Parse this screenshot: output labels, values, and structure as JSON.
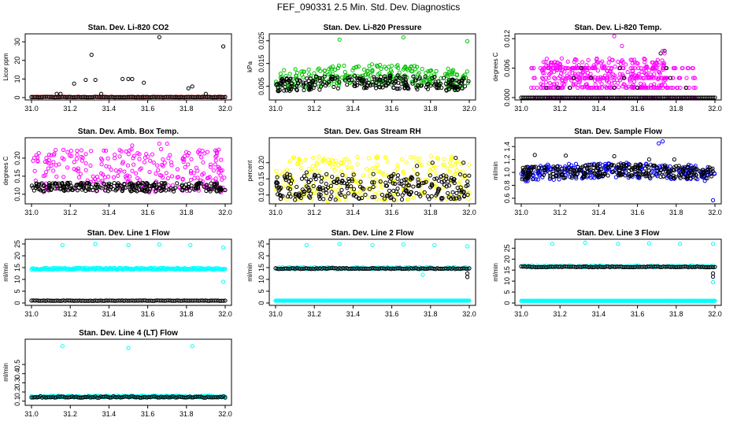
{
  "figure_title": "FEF_090331  2.5 Min. Std. Dev. Diagnostics",
  "chart_data": [
    {
      "type": "scatter",
      "title": "Stan. Dev. Li-820 CO2",
      "xlabel": "",
      "ylabel": "Licor ppm",
      "xlim": [
        31.0,
        32.0
      ],
      "ylim": [
        0,
        33
      ],
      "xticks": [
        "31.0",
        "31.2",
        "31.4",
        "31.6",
        "31.8",
        "32.0"
      ],
      "yticks": [
        "0",
        "10",
        "20",
        "30"
      ],
      "series": [
        {
          "name": "bulk",
          "color": "#ff0000",
          "mode": "base",
          "base": 0.3,
          "spread": 0.4
        },
        {
          "name": "black",
          "color": "#000000",
          "mode": "base",
          "base": 0.3,
          "spread": 0.3
        },
        {
          "name": "black-outliers",
          "color": "#000000",
          "mode": "points",
          "x": [
            31.13,
            31.15,
            31.22,
            31.28,
            31.31,
            31.33,
            31.36,
            31.47,
            31.5,
            31.52,
            31.58,
            31.66,
            31.81,
            31.83,
            31.9,
            31.99
          ],
          "y": [
            2,
            2,
            7.5,
            9.5,
            23,
            9.5,
            2,
            10,
            10,
            10,
            8,
            32.5,
            5,
            6,
            2,
            27.5
          ]
        }
      ]
    },
    {
      "type": "scatter",
      "title": "Stan. Dev. Li-820 Pressure",
      "xlabel": "",
      "ylabel": "kPa",
      "xlim": [
        31.0,
        32.0
      ],
      "ylim": [
        0,
        0.027
      ],
      "xticks": [
        "31.0",
        "31.2",
        "31.4",
        "31.6",
        "31.8",
        "32.0"
      ],
      "yticks": [
        "0.005",
        "0.015",
        "0.025"
      ],
      "series": [
        {
          "name": "green",
          "color": "#00c000",
          "mode": "band",
          "base": 0.0072,
          "spread": 0.0045,
          "trend": 0.003
        },
        {
          "name": "black",
          "color": "#000000",
          "mode": "band",
          "base": 0.0055,
          "spread": 0.003,
          "trend": 0.0015
        },
        {
          "name": "green-outliers",
          "color": "#00c000",
          "mode": "points",
          "x": [
            31.33,
            31.66,
            31.99
          ],
          "y": [
            0.0255,
            0.0265,
            0.0248
          ]
        }
      ]
    },
    {
      "type": "scatter",
      "title": "Stan. Dev. Li-820 Temp.",
      "xlabel": "",
      "ylabel": "degrees C",
      "xlim": [
        31.0,
        32.0
      ],
      "ylim": [
        0,
        0.0125
      ],
      "xticks": [
        "31.0",
        "31.2",
        "31.4",
        "31.6",
        "31.8",
        "32.0"
      ],
      "yticks": [
        "0.000",
        "0.006",
        "0.012"
      ],
      "series": [
        {
          "name": "magenta-levels",
          "color": "#ff00ff",
          "mode": "levels",
          "levels": [
            0,
            0.002,
            0.004,
            0.006
          ],
          "xrange": [
            31.05,
            31.9
          ]
        },
        {
          "name": "magenta-bumps",
          "color": "#ff00ff",
          "mode": "band",
          "base": 0.005,
          "spread": 0.003,
          "trend": 0.0,
          "xrange": [
            31.1,
            31.75
          ]
        },
        {
          "name": "black-zero",
          "color": "#000000",
          "mode": "base",
          "base": 0.0,
          "spread": 0.0
        },
        {
          "name": "black-high",
          "color": "#000000",
          "mode": "points",
          "x": [
            31.13,
            31.19,
            31.25,
            31.27,
            31.31,
            31.36,
            31.48,
            31.51,
            31.53,
            31.6,
            31.72,
            31.74,
            31.75,
            31.77,
            31.85
          ],
          "y": [
            0.002,
            0.002,
            0.002,
            0.004,
            0.006,
            0.004,
            0.002,
            0.006,
            0.004,
            0.002,
            0.009,
            0.0095,
            0.006,
            0.004,
            0.002
          ]
        },
        {
          "name": "magenta-outliers",
          "color": "#ff00ff",
          "mode": "points",
          "x": [
            31.48,
            31.52,
            31.73,
            31.74
          ],
          "y": [
            0.0125,
            0.0105,
            0.0095,
            0.009
          ]
        }
      ]
    },
    {
      "type": "scatter",
      "title": "Stan. Dev. Amb. Box Temp.",
      "xlabel": "",
      "ylabel": "degrees C",
      "xlim": [
        31.0,
        32.0
      ],
      "ylim": [
        0.08,
        0.25
      ],
      "xticks": [
        "31.0",
        "31.2",
        "31.4",
        "31.6",
        "31.8",
        "32.0"
      ],
      "yticks": [
        "0.10",
        "0.15",
        "0.20"
      ],
      "series": [
        {
          "name": "magenta",
          "color": "#ff00ff",
          "mode": "band",
          "base": 0.165,
          "spread": 0.06,
          "trend": 0.0
        },
        {
          "name": "black",
          "color": "#000000",
          "mode": "band",
          "base": 0.12,
          "spread": 0.012,
          "trend": 0.0
        },
        {
          "name": "magenta-outliers",
          "color": "#ff00ff",
          "mode": "points",
          "x": [
            31.52,
            31.66,
            31.7
          ],
          "y": [
            0.235,
            0.24,
            0.24
          ]
        }
      ]
    },
    {
      "type": "scatter",
      "title": "Stan. Dev. Gas Stream RH",
      "xlabel": "",
      "ylabel": "percent",
      "xlim": [
        31.0,
        32.0
      ],
      "ylim": [
        0.08,
        0.27
      ],
      "xticks": [
        "31.0",
        "31.2",
        "31.4",
        "31.6",
        "31.8",
        "32.0"
      ],
      "yticks": [
        "0.10",
        "0.15",
        "0.20"
      ],
      "series": [
        {
          "name": "yellow",
          "color": "#ffff00",
          "mode": "band",
          "base": 0.15,
          "spread": 0.07,
          "trend": 0.0
        },
        {
          "name": "black",
          "color": "#000000",
          "mode": "band",
          "base": 0.125,
          "spread": 0.04,
          "trend": 0.0
        },
        {
          "name": "black-outliers",
          "color": "#000000",
          "mode": "points",
          "x": [
            31.06,
            31.16,
            31.63,
            31.73,
            31.81,
            31.93,
            31.97
          ],
          "y": [
            0.165,
            0.17,
            0.15,
            0.19,
            0.2,
            0.215,
            0.2
          ]
        }
      ]
    },
    {
      "type": "scatter",
      "title": "Stan. Dev. Sample Flow",
      "xlabel": "",
      "ylabel": "ml/min",
      "xlim": [
        31.0,
        32.0
      ],
      "ylim": [
        0.55,
        1.5
      ],
      "xticks": [
        "31.0",
        "31.2",
        "31.4",
        "31.6",
        "31.8",
        "32.0"
      ],
      "yticks": [
        "0.6",
        "0.8",
        "1.0",
        "1.2",
        "1.4"
      ],
      "series": [
        {
          "name": "blue",
          "color": "#0000ff",
          "mode": "band",
          "base": 0.98,
          "spread": 0.12,
          "trend": 0.05
        },
        {
          "name": "black",
          "color": "#000000",
          "mode": "band",
          "base": 0.98,
          "spread": 0.1,
          "trend": 0.05
        },
        {
          "name": "black-outliers",
          "color": "#000000",
          "mode": "points",
          "x": [
            31.07,
            31.23,
            31.48,
            31.66,
            31.79
          ],
          "y": [
            1.27,
            1.26,
            1.25,
            1.2,
            1.2
          ]
        },
        {
          "name": "blue-outliers",
          "color": "#0000ff",
          "mode": "points",
          "x": [
            31.71,
            31.73,
            31.99
          ],
          "y": [
            1.45,
            1.48,
            0.57
          ]
        }
      ]
    },
    {
      "type": "scatter",
      "title": "Stan. Dev. Line 1 Flow",
      "xlabel": "",
      "ylabel": "ml/min",
      "xlim": [
        31.0,
        32.0
      ],
      "ylim": [
        0,
        26
      ],
      "xticks": [
        "31.0",
        "31.2",
        "31.4",
        "31.6",
        "31.8",
        "32.0"
      ],
      "yticks": [
        "0",
        "5",
        "10",
        "15",
        "20",
        "25"
      ],
      "series": [
        {
          "name": "cyan",
          "color": "#00ffff",
          "mode": "base",
          "base": 14.5,
          "spread": 0.8,
          "dense": true
        },
        {
          "name": "black",
          "color": "#000000",
          "mode": "base",
          "base": 1.0,
          "spread": 0.2
        },
        {
          "name": "cyan-outliers",
          "color": "#00ffff",
          "mode": "points",
          "x": [
            31.16,
            31.33,
            31.5,
            31.66,
            31.82,
            31.99,
            31.99
          ],
          "y": [
            24.5,
            25,
            24.5,
            24.8,
            24.5,
            23.5,
            9
          ]
        }
      ]
    },
    {
      "type": "scatter",
      "title": "Stan. Dev. Line 2 Flow",
      "xlabel": "",
      "ylabel": "ml/min",
      "xlim": [
        31.0,
        32.0
      ],
      "ylim": [
        0,
        26
      ],
      "xticks": [
        "31.0",
        "31.2",
        "31.4",
        "31.6",
        "31.8",
        "32.0"
      ],
      "yticks": [
        "0",
        "5",
        "10",
        "15",
        "20",
        "25"
      ],
      "series": [
        {
          "name": "cyan-zero",
          "color": "#00ffff",
          "mode": "base",
          "base": 1.0,
          "spread": 0.0,
          "dense": true
        },
        {
          "name": "cyan",
          "color": "#00ffff",
          "mode": "base",
          "base": 14.8,
          "spread": 0.8
        },
        {
          "name": "black",
          "color": "#000000",
          "mode": "base",
          "base": 14.6,
          "spread": 0.4
        },
        {
          "name": "cyan-outliers",
          "color": "#00ffff",
          "mode": "points",
          "x": [
            31.16,
            31.33,
            31.5,
            31.66,
            31.82,
            31.99,
            31.76
          ],
          "y": [
            24.5,
            25,
            24.5,
            24.8,
            24.5,
            24,
            12
          ]
        },
        {
          "name": "black-outliers",
          "color": "#000000",
          "mode": "points",
          "x": [
            31.99,
            31.99
          ],
          "y": [
            11,
            12.5
          ]
        }
      ]
    },
    {
      "type": "scatter",
      "title": "Stan. Dev. Line 3 Flow",
      "xlabel": "",
      "ylabel": "ml/min",
      "xlim": [
        31.0,
        32.0
      ],
      "ylim": [
        0,
        28
      ],
      "xticks": [
        "31.0",
        "31.2",
        "31.4",
        "31.6",
        "31.8",
        "32.0"
      ],
      "yticks": [
        "0",
        "5",
        "10",
        "15",
        "20",
        "25"
      ],
      "series": [
        {
          "name": "cyan-zero",
          "color": "#00ffff",
          "mode": "base",
          "base": 1.0,
          "spread": 0.0,
          "dense": true
        },
        {
          "name": "cyan",
          "color": "#00ffff",
          "mode": "base",
          "base": 16.7,
          "spread": 0.8
        },
        {
          "name": "black",
          "color": "#000000",
          "mode": "base",
          "base": 16.5,
          "spread": 0.4
        },
        {
          "name": "cyan-outliers",
          "color": "#00ffff",
          "mode": "points",
          "x": [
            31.16,
            31.33,
            31.5,
            31.66,
            31.82,
            31.99,
            31.99
          ],
          "y": [
            27,
            27.5,
            27,
            27.2,
            27,
            27,
            9.5
          ]
        },
        {
          "name": "black-outliers",
          "color": "#000000",
          "mode": "points",
          "x": [
            31.99,
            31.99
          ],
          "y": [
            12,
            13.5
          ]
        }
      ]
    },
    {
      "type": "scatter",
      "title": "Stan. Dev. Line 4 (LT) Flow",
      "xlabel": "",
      "ylabel": "ml/min",
      "xlim": [
        31.0,
        32.0
      ],
      "ylim": [
        0.08,
        0.75
      ],
      "xticks": [
        "31.0",
        "31.2",
        "31.4",
        "31.6",
        "31.8",
        "32.0"
      ],
      "yticks": [
        "0.1",
        "0.2",
        "0.3",
        "0.4",
        "0.5"
      ],
      "series": [
        {
          "name": "cyan",
          "color": "#00ffff",
          "mode": "base",
          "base": 0.15,
          "spread": 0.02,
          "dense": true
        },
        {
          "name": "black",
          "color": "#000000",
          "mode": "base",
          "base": 0.145,
          "spread": 0.015
        },
        {
          "name": "cyan-outliers",
          "color": "#00ffff",
          "mode": "points",
          "x": [
            31.16,
            31.5,
            31.83
          ],
          "y": [
            0.7,
            0.68,
            0.7
          ]
        }
      ]
    }
  ]
}
